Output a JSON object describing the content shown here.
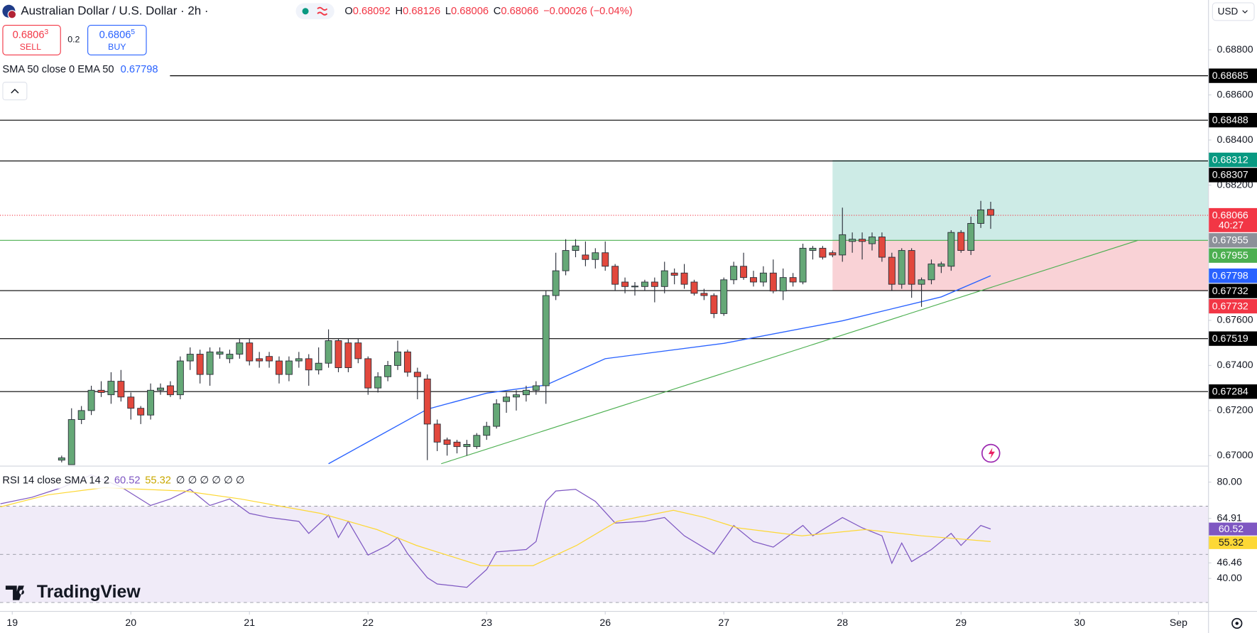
{
  "header": {
    "symbol": "Australian Dollar / U.S. Dollar · 2h ·",
    "ohlc_prefixes": [
      "O",
      "H",
      "L",
      "C"
    ],
    "change": "−0.00026 (−0.04%)",
    "sell": {
      "price": "0.6806",
      "pip": "3",
      "label": "SELL"
    },
    "spread": "0.2",
    "buy": {
      "price": "0.6806",
      "pip": "5",
      "label": "BUY"
    },
    "currency": "USD",
    "logo": "TradingView"
  },
  "chart_data": [
    {
      "type": "candlestick",
      "indicator_label": "SMA 50 close 0 EMA 50",
      "xlim": [
        -6.24,
        116
      ],
      "xticks": [
        {
          "value": -5,
          "label": "19"
        },
        {
          "value": 7,
          "label": "20"
        },
        {
          "value": 19,
          "label": "21"
        },
        {
          "value": 31,
          "label": "22"
        },
        {
          "value": 43,
          "label": "23"
        },
        {
          "value": 55,
          "label": "26"
        },
        {
          "value": 67,
          "label": "27"
        },
        {
          "value": 79,
          "label": "28"
        },
        {
          "value": 91,
          "label": "29"
        },
        {
          "value": 103,
          "label": "30"
        },
        {
          "value": 113,
          "label": "Sep"
        }
      ],
      "ylim": [
        0.66957,
        0.69021
      ],
      "yticks": [
        {
          "value": 0.688,
          "label": "0.68800"
        },
        {
          "value": 0.686,
          "label": "0.68600"
        },
        {
          "value": 0.684,
          "label": "0.68400"
        },
        {
          "value": 0.682,
          "label": "0.68200"
        },
        {
          "value": 0.676,
          "label": "0.67600"
        },
        {
          "value": 0.674,
          "label": "0.67400"
        },
        {
          "value": 0.672,
          "label": "0.67200"
        },
        {
          "value": 0.67,
          "label": "0.67000"
        }
      ],
      "up_color": "#65a877",
      "down_color": "#e2483d",
      "open": [
        0.6698,
        0.6696,
        0.6716,
        0.672,
        0.6729,
        0.6727,
        0.6733,
        0.6726,
        0.6721,
        0.6718,
        0.6729,
        0.6731,
        0.6727,
        0.6742,
        0.6745,
        0.6736,
        0.6745,
        0.6743,
        0.6745,
        0.675,
        0.6743,
        0.6744,
        0.6742,
        0.6736,
        0.6742,
        0.6743,
        0.6738,
        0.6741,
        0.6751,
        0.675,
        0.675,
        0.6743,
        0.673,
        0.6735,
        0.674,
        0.6746,
        0.6737,
        0.6734,
        0.6714,
        0.6707,
        0.6706,
        0.6704,
        0.6704,
        0.6709,
        0.6713,
        0.6724,
        0.6726,
        0.6727,
        0.6729,
        0.6731,
        0.6771,
        0.6782,
        0.6791,
        0.6789,
        0.6787,
        0.679,
        0.6784,
        0.6777,
        0.6775,
        0.6775,
        0.6777,
        0.6775,
        0.6781,
        0.6781,
        0.6777,
        0.6772,
        0.6771,
        0.6763,
        0.6778,
        0.6784,
        0.6779,
        0.6777,
        0.6781,
        0.6773,
        0.6779,
        0.6777,
        0.6791,
        0.6792,
        0.679,
        0.6789,
        0.6795,
        0.6796,
        0.6794,
        0.6797,
        0.6788,
        0.6776,
        0.6791,
        0.6776,
        0.6778,
        0.6784,
        0.6784,
        0.6799,
        0.6791,
        0.6803,
        0.68092
      ],
      "high": [
        0.67,
        0.6721,
        0.6722,
        0.6731,
        0.6733,
        0.6737,
        0.6738,
        0.6728,
        0.6722,
        0.6732,
        0.6732,
        0.6733,
        0.6744,
        0.6748,
        0.6747,
        0.6748,
        0.6748,
        0.6747,
        0.6752,
        0.6752,
        0.6746,
        0.6746,
        0.6744,
        0.6744,
        0.6746,
        0.6745,
        0.6748,
        0.6756,
        0.6752,
        0.6752,
        0.6752,
        0.6744,
        0.6737,
        0.6742,
        0.6751,
        0.6747,
        0.6739,
        0.6736,
        0.6716,
        0.6708,
        0.6707,
        0.6707,
        0.671,
        0.6715,
        0.6725,
        0.6728,
        0.6729,
        0.6731,
        0.6733,
        0.6773,
        0.679,
        0.6796,
        0.6796,
        0.6795,
        0.6792,
        0.6795,
        0.6785,
        0.6779,
        0.6777,
        0.6778,
        0.6779,
        0.6786,
        0.6783,
        0.6785,
        0.6778,
        0.6774,
        0.6772,
        0.6779,
        0.6786,
        0.679,
        0.6782,
        0.6784,
        0.6787,
        0.6783,
        0.6781,
        0.6794,
        0.6793,
        0.6793,
        0.6791,
        0.681,
        0.6799,
        0.6799,
        0.6799,
        0.6799,
        0.679,
        0.6792,
        0.6792,
        0.6779,
        0.6787,
        0.6786,
        0.68,
        0.68,
        0.6806,
        0.6813,
        0.68126
      ],
      "low": [
        0.6697,
        0.6696,
        0.6714,
        0.6718,
        0.6726,
        0.6723,
        0.6724,
        0.6716,
        0.6714,
        0.6716,
        0.6727,
        0.6726,
        0.6725,
        0.6738,
        0.6732,
        0.6731,
        0.6743,
        0.6741,
        0.6743,
        0.674,
        0.6739,
        0.6739,
        0.6732,
        0.6733,
        0.6739,
        0.6731,
        0.6736,
        0.6739,
        0.6737,
        0.6737,
        0.6741,
        0.6727,
        0.6728,
        0.6733,
        0.6738,
        0.6735,
        0.6725,
        0.6698,
        0.6702,
        0.67,
        0.6701,
        0.67,
        0.6703,
        0.6707,
        0.6712,
        0.6719,
        0.672,
        0.6724,
        0.6727,
        0.6723,
        0.6769,
        0.678,
        0.6788,
        0.6784,
        0.6783,
        0.6782,
        0.6773,
        0.6772,
        0.6771,
        0.6773,
        0.6768,
        0.6772,
        0.6776,
        0.6774,
        0.6771,
        0.6769,
        0.6761,
        0.6762,
        0.6776,
        0.6778,
        0.6775,
        0.6775,
        0.6772,
        0.6769,
        0.6775,
        0.6776,
        0.6787,
        0.6787,
        0.6788,
        0.6786,
        0.679,
        0.6787,
        0.6791,
        0.6786,
        0.6773,
        0.6774,
        0.677,
        0.6766,
        0.6776,
        0.6781,
        0.6782,
        0.679,
        0.6789,
        0.6801,
        0.68006
      ],
      "close": [
        0.6699,
        0.6716,
        0.672,
        0.6729,
        0.6728,
        0.6733,
        0.6726,
        0.6721,
        0.6718,
        0.6729,
        0.673,
        0.6727,
        0.6742,
        0.6745,
        0.6736,
        0.6746,
        0.6746,
        0.6745,
        0.675,
        0.6742,
        0.6742,
        0.6742,
        0.6736,
        0.6742,
        0.6743,
        0.6738,
        0.6741,
        0.6751,
        0.6739,
        0.6739,
        0.6743,
        0.673,
        0.6735,
        0.674,
        0.6746,
        0.6737,
        0.6735,
        0.6714,
        0.6706,
        0.6705,
        0.6704,
        0.6705,
        0.6709,
        0.6713,
        0.6723,
        0.6726,
        0.6727,
        0.6729,
        0.6731,
        0.6771,
        0.6782,
        0.6791,
        0.6793,
        0.6787,
        0.679,
        0.6784,
        0.6776,
        0.6775,
        0.67752,
        0.6777,
        0.6775,
        0.6782,
        0.678,
        0.6776,
        0.6772,
        0.6771,
        0.6763,
        0.6778,
        0.6784,
        0.6779,
        0.6777,
        0.6781,
        0.6773,
        0.6779,
        0.6777,
        0.6792,
        0.6792,
        0.6788,
        0.6789,
        0.6798,
        0.6796,
        0.6795,
        0.6797,
        0.6788,
        0.6776,
        0.6791,
        0.6776,
        0.6778,
        0.6785,
        0.6785,
        0.6799,
        0.6791,
        0.6803,
        0.6809,
        0.68066
      ],
      "countdown": "40:27",
      "last_color": "#f23645",
      "ema": {
        "color": "#2962ff",
        "x": [
          27,
          37,
          43,
          49,
          55,
          67,
          79,
          84,
          89,
          94
        ],
        "values": [
          0.66964,
          0.67206,
          0.67277,
          0.67313,
          0.6743,
          0.67498,
          0.67598,
          0.67651,
          0.67704,
          0.67798
        ]
      },
      "trendline": {
        "color": "#4caf50",
        "x": [
          38.4,
          108.9
        ],
        "values": [
          0.66964,
          0.67955
        ]
      },
      "levels": [
        0.68685,
        0.68488,
        0.68307,
        0.67732,
        0.67519,
        0.67284
      ],
      "level_color": "#000000",
      "hline": {
        "value": 0.67955,
        "color": "#4caf50",
        "label_color": "#8c9099"
      },
      "position": {
        "x": 78,
        "entry": 0.67955,
        "target": 0.68312,
        "stop": 0.67732,
        "entry_color": "#4caf50",
        "target_color": "#089981",
        "stop_color": "#f23645",
        "profit_fill": "#cdebe6",
        "loss_fill": "#f9d2d6"
      }
    },
    {
      "type": "line",
      "legend": "RSI 14 close SMA 14 2",
      "legend_extra": "∅ ∅ ∅ ∅ ∅ ∅",
      "ylim": [
        27,
        86.3
      ],
      "yticks": [
        {
          "value": 80,
          "label": "80.00"
        },
        64.91,
        46.46,
        {
          "value": 40,
          "label": "40.00"
        }
      ],
      "bands": [
        70,
        50,
        30
      ],
      "band_fill": "#f0ebf8",
      "series": [
        {
          "color": "#7e57c2",
          "label_text_color": "#ffffff",
          "x": [
            -6.2,
            -3,
            0,
            3,
            6,
            9,
            11,
            13,
            15,
            17,
            19,
            21,
            24,
            25,
            27,
            28,
            29,
            31,
            33,
            34,
            35,
            37,
            38,
            41,
            43,
            44,
            47,
            48,
            49,
            50,
            52,
            54,
            56,
            59,
            61,
            63,
            66,
            68,
            70,
            72,
            75,
            76,
            79,
            81,
            83,
            84,
            85,
            86,
            88,
            90,
            91,
            93,
            94
          ],
          "values": [
            71,
            73.7,
            77.7,
            83,
            78,
            70.3,
            73,
            77,
            70.3,
            73,
            67,
            65.3,
            63.7,
            58.7,
            66.3,
            57,
            63.7,
            49.7,
            53.7,
            57,
            50.3,
            40.3,
            37.7,
            36.3,
            43.7,
            51,
            52,
            55.3,
            72,
            76.3,
            77,
            72,
            63,
            63.7,
            65.3,
            57.7,
            50.3,
            62,
            55.3,
            53,
            62,
            57.7,
            65.3,
            61,
            57.7,
            46.3,
            54.7,
            47,
            52,
            58.7,
            53.7,
            62,
            60.52
          ]
        },
        {
          "color": "#fdd835",
          "label_text_color": "#131722",
          "x": [
            -6.2,
            -1.4,
            4.3,
            12.4,
            18.1,
            26.2,
            31.9,
            35.9,
            42.4,
            47.7,
            52.1,
            56.2,
            61.9,
            65.1,
            68.4,
            74.9,
            81.3,
            87,
            94
          ],
          "values": [
            69.7,
            74.7,
            77.7,
            76.3,
            73,
            67,
            60.3,
            53.7,
            45.3,
            45.3,
            53.7,
            63.7,
            68.3,
            65.3,
            61,
            57.7,
            60.3,
            57.7,
            55.32
          ]
        }
      ]
    }
  ]
}
